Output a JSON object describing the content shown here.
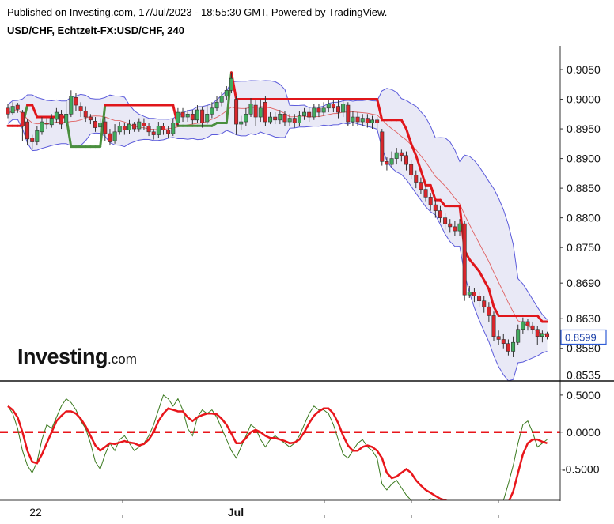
{
  "header": {
    "published": "Published on Investing.com, 17/Jul/2023 - 18:55:30 GMT, Powered by TradingView.",
    "symbol": "USD/CHF, Echtzeit-FX:USD/CHF, 240"
  },
  "brand": {
    "name": "Investing",
    "suffix": ".com"
  },
  "colors": {
    "bull": "#41ab5d",
    "bear": "#d9262b",
    "band": "#5b5bdb",
    "band_fill": "#e9e9f6",
    "st_red": "#e0161b",
    "st_green": "#4a8f3e",
    "last": "#2f5cd6",
    "osc_fast": "#3b7a1f",
    "osc_slow": "#e8161b"
  },
  "chart_data": [
    {
      "type": "candlestick",
      "title": "USD/CHF, Echtzeit-FX:USD/CHF, 240",
      "ylim": [
        0.8525,
        0.909
      ],
      "y_ticks": [
        "0.9050",
        "0.9000",
        "0.8950",
        "0.8900",
        "0.8850",
        "0.8800",
        "0.8750",
        "0.8690",
        "0.8630",
        "0.8580",
        "0.8535"
      ],
      "y_tick_values": [
        0.905,
        0.9,
        0.895,
        0.89,
        0.885,
        0.88,
        0.875,
        0.869,
        0.863,
        0.858,
        0.8535
      ],
      "x_ticks": [
        "22",
        "Jul"
      ],
      "last_price": "0.8599",
      "last_price_value": 0.8599,
      "candles": [
        [
          0.8985,
          0.8975,
          0.8992,
          0.8968
        ],
        [
          0.8977,
          0.8988,
          0.8995,
          0.8973
        ],
        [
          0.899,
          0.8983,
          0.8994,
          0.8977
        ],
        [
          0.8978,
          0.8955,
          0.8982,
          0.893
        ],
        [
          0.8962,
          0.8933,
          0.8966,
          0.8922
        ],
        [
          0.8935,
          0.8928,
          0.894,
          0.8915
        ],
        [
          0.8928,
          0.8947,
          0.8955,
          0.8922
        ],
        [
          0.8945,
          0.8962,
          0.897,
          0.894
        ],
        [
          0.896,
          0.8958,
          0.8968,
          0.895
        ],
        [
          0.8957,
          0.8968,
          0.8975,
          0.8952
        ],
        [
          0.8966,
          0.8978,
          0.8985,
          0.896
        ],
        [
          0.8975,
          0.8958,
          0.8982,
          0.895
        ],
        [
          0.896,
          0.8975,
          0.8998,
          0.8955
        ],
        [
          0.8975,
          0.9005,
          0.9015,
          0.897
        ],
        [
          0.9003,
          0.899,
          0.901,
          0.898
        ],
        [
          0.8988,
          0.898,
          0.8995,
          0.897
        ],
        [
          0.898,
          0.897,
          0.8988,
          0.8962
        ],
        [
          0.897,
          0.8965,
          0.8975,
          0.8958
        ],
        [
          0.8963,
          0.8952,
          0.897,
          0.8945
        ],
        [
          0.8953,
          0.896,
          0.8968,
          0.8948
        ],
        [
          0.8962,
          0.8942,
          0.897,
          0.893
        ],
        [
          0.8942,
          0.8928,
          0.895,
          0.8922
        ],
        [
          0.893,
          0.8945,
          0.8958,
          0.8925
        ],
        [
          0.8945,
          0.8955,
          0.8962,
          0.894
        ],
        [
          0.8955,
          0.8948,
          0.896,
          0.894
        ],
        [
          0.8948,
          0.8958,
          0.8965,
          0.8942
        ],
        [
          0.8958,
          0.895,
          0.8962,
          0.8945
        ],
        [
          0.895,
          0.8962,
          0.8968,
          0.8945
        ],
        [
          0.896,
          0.8955,
          0.8968,
          0.8948
        ],
        [
          0.8955,
          0.8945,
          0.896,
          0.8938
        ],
        [
          0.8945,
          0.894,
          0.895,
          0.8932
        ],
        [
          0.894,
          0.8955,
          0.8962,
          0.8935
        ],
        [
          0.8955,
          0.8948,
          0.896,
          0.894
        ],
        [
          0.8948,
          0.8942,
          0.8955,
          0.8935
        ],
        [
          0.8942,
          0.896,
          0.8968,
          0.8938
        ],
        [
          0.896,
          0.8978,
          0.8985,
          0.8955
        ],
        [
          0.8978,
          0.897,
          0.8985,
          0.8962
        ],
        [
          0.897,
          0.8975,
          0.8982,
          0.8962
        ],
        [
          0.8975,
          0.8965,
          0.8982,
          0.8958
        ],
        [
          0.8965,
          0.8982,
          0.899,
          0.896
        ],
        [
          0.8982,
          0.896,
          0.8988,
          0.8952
        ],
        [
          0.8962,
          0.8975,
          0.899,
          0.8958
        ],
        [
          0.8975,
          0.8985,
          0.8995,
          0.8968
        ],
        [
          0.8985,
          0.8995,
          0.9005,
          0.898
        ],
        [
          0.8995,
          0.9005,
          0.9012,
          0.8988
        ],
        [
          0.9005,
          0.9015,
          0.9022,
          0.8998
        ],
        [
          0.9015,
          0.9035,
          0.9045,
          0.901
        ],
        [
          0.9,
          0.8958,
          0.9005,
          0.894
        ],
        [
          0.8958,
          0.8962,
          0.8972,
          0.8948
        ],
        [
          0.8962,
          0.8975,
          0.8985,
          0.8955
        ],
        [
          0.8975,
          0.8992,
          0.9002,
          0.897
        ],
        [
          0.899,
          0.897,
          0.8998,
          0.8955
        ],
        [
          0.897,
          0.8985,
          0.9,
          0.8962
        ],
        [
          0.8995,
          0.8962,
          0.9005,
          0.8955
        ],
        [
          0.8962,
          0.897,
          0.8978,
          0.8958
        ],
        [
          0.897,
          0.8965,
          0.8978,
          0.8958
        ],
        [
          0.8965,
          0.8975,
          0.8982,
          0.8958
        ],
        [
          0.8975,
          0.8962,
          0.898,
          0.8955
        ],
        [
          0.8962,
          0.8968,
          0.8975,
          0.8955
        ],
        [
          0.8968,
          0.896,
          0.8975,
          0.8952
        ],
        [
          0.896,
          0.8972,
          0.898,
          0.8955
        ],
        [
          0.8972,
          0.8978,
          0.8985,
          0.8965
        ],
        [
          0.8978,
          0.897,
          0.8985,
          0.8962
        ],
        [
          0.897,
          0.8985,
          0.8992,
          0.8965
        ],
        [
          0.8985,
          0.8978,
          0.8992,
          0.897
        ],
        [
          0.8978,
          0.8985,
          0.8995,
          0.8972
        ],
        [
          0.8985,
          0.8992,
          0.8998,
          0.8978
        ],
        [
          0.8992,
          0.8985,
          0.8998,
          0.8978
        ],
        [
          0.8988,
          0.8978,
          0.8998,
          0.8968
        ],
        [
          0.8978,
          0.8992,
          0.8998,
          0.897
        ],
        [
          0.899,
          0.8962,
          0.8995,
          0.8955
        ],
        [
          0.8962,
          0.897,
          0.898,
          0.8955
        ],
        [
          0.897,
          0.8962,
          0.8978,
          0.8955
        ],
        [
          0.8962,
          0.8968,
          0.8975,
          0.8955
        ],
        [
          0.8968,
          0.896,
          0.8975,
          0.8952
        ],
        [
          0.896,
          0.8965,
          0.8972,
          0.895
        ],
        [
          0.8965,
          0.896,
          0.897,
          0.8948
        ],
        [
          0.8945,
          0.8895,
          0.895,
          0.8888
        ],
        [
          0.8895,
          0.889,
          0.8902,
          0.888
        ],
        [
          0.889,
          0.89,
          0.8912,
          0.8885
        ],
        [
          0.89,
          0.891,
          0.8918,
          0.889
        ],
        [
          0.891,
          0.8905,
          0.8915,
          0.8895
        ],
        [
          0.8905,
          0.889,
          0.8912,
          0.888
        ],
        [
          0.889,
          0.8872,
          0.8898,
          0.8865
        ],
        [
          0.8872,
          0.886,
          0.888,
          0.885
        ],
        [
          0.886,
          0.8848,
          0.8868,
          0.884
        ],
        [
          0.8848,
          0.8835,
          0.8855,
          0.8828
        ],
        [
          0.8835,
          0.8822,
          0.8842,
          0.8812
        ],
        [
          0.8822,
          0.8812,
          0.883,
          0.88
        ],
        [
          0.8812,
          0.88,
          0.882,
          0.8792
        ],
        [
          0.88,
          0.879,
          0.8808,
          0.878
        ],
        [
          0.879,
          0.8785,
          0.8798,
          0.8775
        ],
        [
          0.8785,
          0.8778,
          0.8795,
          0.877
        ],
        [
          0.8778,
          0.879,
          0.8798,
          0.877
        ],
        [
          0.879,
          0.867,
          0.8795,
          0.866
        ],
        [
          0.867,
          0.8675,
          0.8685,
          0.8665
        ],
        [
          0.8675,
          0.8668,
          0.8682,
          0.8658
        ],
        [
          0.8668,
          0.866,
          0.8675,
          0.865
        ],
        [
          0.866,
          0.865,
          0.8668,
          0.864
        ],
        [
          0.865,
          0.8635,
          0.8658,
          0.8625
        ],
        [
          0.8635,
          0.86,
          0.8642,
          0.8592
        ],
        [
          0.86,
          0.8595,
          0.861,
          0.8585
        ],
        [
          0.8595,
          0.8588,
          0.8605,
          0.858
        ],
        [
          0.8588,
          0.8575,
          0.8595,
          0.8568
        ],
        [
          0.8575,
          0.859,
          0.86,
          0.8565
        ],
        [
          0.859,
          0.8612,
          0.862,
          0.8585
        ],
        [
          0.8612,
          0.8625,
          0.8632,
          0.8605
        ],
        [
          0.8625,
          0.8618,
          0.863,
          0.861
        ],
        [
          0.8618,
          0.8612,
          0.8625,
          0.8605
        ],
        [
          0.8612,
          0.86,
          0.8618,
          0.8585
        ],
        [
          0.86,
          0.8605,
          0.861,
          0.859
        ],
        [
          0.8605,
          0.8599,
          0.8608,
          0.8595
        ]
      ],
      "supertrend": [
        0.8955,
        0.8955,
        0.8955,
        0.8955,
        0.899,
        0.899,
        0.897,
        0.897,
        0.897,
        0.897,
        0.897,
        0.897,
        0.897,
        0.892,
        0.892,
        0.892,
        0.892,
        0.892,
        0.892,
        0.892,
        0.899,
        0.899,
        0.899,
        0.899,
        0.899,
        0.899,
        0.899,
        0.899,
        0.899,
        0.899,
        0.899,
        0.899,
        0.899,
        0.899,
        0.899,
        0.8955,
        0.8955,
        0.8955,
        0.8955,
        0.8955,
        0.8955,
        0.8955,
        0.8955,
        0.896,
        0.896,
        0.896,
        0.9045,
        0.9,
        0.9,
        0.9,
        0.9,
        0.9,
        0.9,
        0.9,
        0.9,
        0.9,
        0.9,
        0.9,
        0.9,
        0.9,
        0.9,
        0.9,
        0.9,
        0.9,
        0.9,
        0.9,
        0.9,
        0.9,
        0.9,
        0.9,
        0.9,
        0.9,
        0.9,
        0.9,
        0.9,
        0.9,
        0.9,
        0.8965,
        0.8965,
        0.8965,
        0.8965,
        0.8965,
        0.895,
        0.8925,
        0.8905,
        0.888,
        0.8855,
        0.8855,
        0.883,
        0.883,
        0.882,
        0.882,
        0.882,
        0.882,
        0.8745,
        0.873,
        0.872,
        0.871,
        0.8695,
        0.868,
        0.865,
        0.8635,
        0.8635,
        0.8635,
        0.8635,
        0.8635,
        0.8635,
        0.8635,
        0.8635,
        0.8635,
        0.8625,
        0.8625
      ],
      "supertrend_up": [
        0,
        0,
        0,
        1,
        0,
        0,
        0,
        0,
        0,
        0,
        0,
        0,
        1,
        1,
        1,
        1,
        1,
        1,
        1,
        1,
        0,
        0,
        0,
        0,
        0,
        0,
        0,
        0,
        0,
        0,
        0,
        0,
        0,
        0,
        0,
        1,
        1,
        1,
        1,
        1,
        1,
        1,
        1,
        1,
        1,
        1,
        0,
        0,
        0,
        0,
        0,
        0,
        0,
        0,
        0,
        0,
        0,
        0,
        0,
        0,
        0,
        0,
        0,
        0,
        0,
        0,
        0,
        0,
        0,
        0,
        0,
        0,
        0,
        0,
        0,
        0,
        0,
        0,
        0,
        0,
        0,
        0,
        0,
        0,
        0,
        0,
        0,
        0,
        0,
        0,
        0,
        0,
        0,
        0,
        0,
        0,
        0,
        0,
        0,
        0,
        0,
        0,
        0,
        0,
        0,
        0,
        0,
        0,
        0,
        0,
        0,
        0
      ]
    },
    {
      "type": "line",
      "title": "",
      "ylim": [
        -0.92,
        0.68
      ],
      "y_ticks": [
        "0.5000",
        "0.0000",
        "-0.5000"
      ],
      "y_tick_values": [
        0.5,
        0.0,
        -0.5
      ],
      "reference_line": 0.0,
      "series": [
        {
          "values": [
            0.35,
            0.25,
            0.05,
            -0.25,
            -0.45,
            -0.55,
            -0.4,
            -0.1,
            0.1,
            0.05,
            0.2,
            0.35,
            0.45,
            0.4,
            0.3,
            0.15,
            0.05,
            -0.15,
            -0.4,
            -0.5,
            -0.3,
            -0.15,
            -0.25,
            -0.1,
            -0.05,
            -0.15,
            -0.25,
            -0.2,
            -0.15,
            -0.05,
            0.1,
            0.3,
            0.5,
            0.45,
            0.35,
            0.45,
            0.3,
            0.05,
            -0.05,
            0.2,
            0.3,
            0.25,
            0.3,
            0.2,
            0.05,
            -0.1,
            -0.25,
            -0.35,
            -0.2,
            -0.05,
            0.1,
            0.05,
            -0.1,
            -0.2,
            -0.1,
            -0.05,
            -0.1,
            -0.15,
            -0.2,
            -0.15,
            -0.05,
            0.1,
            0.25,
            0.35,
            0.3,
            0.3,
            0.25,
            0.1,
            -0.1,
            -0.3,
            -0.35,
            -0.25,
            -0.15,
            -0.1,
            -0.2,
            -0.25,
            -0.35,
            -0.7,
            -0.78,
            -0.7,
            -0.65,
            -0.75,
            -0.85,
            -0.92,
            -0.95,
            -0.98,
            -0.95,
            -0.9,
            -0.92,
            -0.98,
            -1.0,
            -0.95,
            -0.92,
            -0.95,
            -1.0,
            -1.0,
            -1.0,
            -1.0,
            -1.0,
            -1.0,
            -1.0,
            -1.0,
            -0.92,
            -0.7,
            -0.45,
            -0.15,
            0.1,
            0.15,
            0.0,
            -0.2,
            -0.15,
            -0.1
          ]
        },
        {
          "values": [
            0.35,
            0.3,
            0.2,
            0.0,
            -0.25,
            -0.4,
            -0.42,
            -0.3,
            -0.15,
            0.0,
            0.15,
            0.22,
            0.28,
            0.28,
            0.25,
            0.18,
            0.08,
            -0.05,
            -0.18,
            -0.25,
            -0.2,
            -0.15,
            -0.16,
            -0.14,
            -0.12,
            -0.14,
            -0.15,
            -0.18,
            -0.16,
            -0.1,
            0.0,
            0.15,
            0.25,
            0.32,
            0.3,
            0.28,
            0.28,
            0.2,
            0.15,
            0.2,
            0.23,
            0.25,
            0.25,
            0.24,
            0.18,
            0.1,
            -0.02,
            -0.15,
            -0.15,
            -0.08,
            0.0,
            0.03,
            0.0,
            -0.05,
            -0.08,
            -0.08,
            -0.1,
            -0.12,
            -0.15,
            -0.14,
            -0.1,
            0.0,
            0.12,
            0.22,
            0.28,
            0.32,
            0.32,
            0.25,
            0.12,
            -0.05,
            -0.18,
            -0.25,
            -0.25,
            -0.2,
            -0.18,
            -0.2,
            -0.25,
            -0.35,
            -0.55,
            -0.62,
            -0.6,
            -0.55,
            -0.5,
            -0.55,
            -0.65,
            -0.72,
            -0.78,
            -0.82,
            -0.86,
            -0.9,
            -0.92,
            -0.94,
            -0.94,
            -0.95,
            -0.97,
            -0.98,
            -1.0,
            -1.0,
            -1.0,
            -1.0,
            -1.0,
            -1.0,
            -1.0,
            -0.95,
            -0.8,
            -0.55,
            -0.3,
            -0.15,
            -0.1,
            -0.1,
            -0.13,
            -0.15
          ]
        }
      ]
    }
  ]
}
